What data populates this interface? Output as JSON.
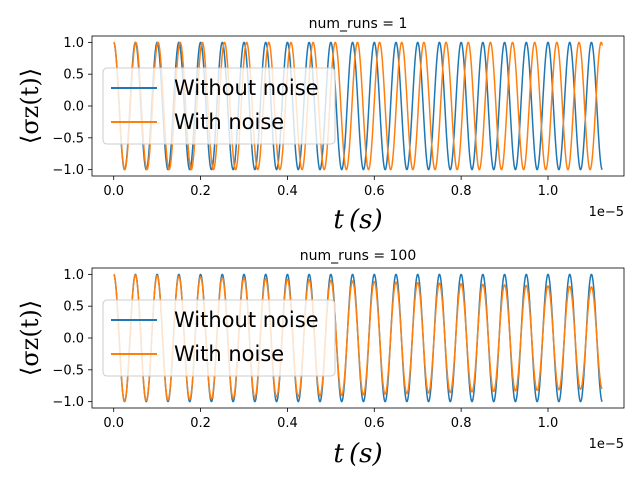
{
  "chart_data": [
    {
      "type": "line",
      "title": "num_runs = 1",
      "xlabel": "t (s)",
      "ylabel": "⟨σz(t)⟩",
      "x_offset_label": "1e−5",
      "xlim": [
        -0.05,
        1.175
      ],
      "ylim": [
        -1.1,
        1.1
      ],
      "xticks": [
        0.0,
        0.2,
        0.4,
        0.6,
        0.8,
        1.0
      ],
      "xtick_labels": [
        "0.0",
        "0.2",
        "0.4",
        "0.6",
        "0.8",
        "1.0"
      ],
      "yticks": [
        1.0,
        0.5,
        0.0,
        -0.5,
        -1.0
      ],
      "ytick_labels": [
        "1.0",
        "0.5",
        "0.0",
        "−0.5",
        "−1.0"
      ],
      "legend_position": "center-left",
      "x_range": [
        0.0,
        1.125
      ],
      "series": [
        {
          "name": "Without noise",
          "color": "#1f77b4",
          "frequency": 20.0,
          "damping": 0.0
        },
        {
          "name": "With noise",
          "color": "#ff7f0e",
          "frequency": 19.6,
          "damping": 0.0
        }
      ]
    },
    {
      "type": "line",
      "title": "num_runs = 100",
      "xlabel": "t (s)",
      "ylabel": "⟨σz(t)⟩",
      "x_offset_label": "1e−5",
      "xlim": [
        -0.05,
        1.175
      ],
      "ylim": [
        -1.1,
        1.1
      ],
      "xticks": [
        0.0,
        0.2,
        0.4,
        0.6,
        0.8,
        1.0
      ],
      "xtick_labels": [
        "0.0",
        "0.2",
        "0.4",
        "0.6",
        "0.8",
        "1.0"
      ],
      "yticks": [
        1.0,
        0.5,
        0.0,
        -0.5,
        -1.0
      ],
      "ytick_labels": [
        "1.0",
        "0.5",
        "0.0",
        "−0.5",
        "−1.0"
      ],
      "legend_position": "center-left",
      "x_range": [
        0.0,
        1.125
      ],
      "series": [
        {
          "name": "Without noise",
          "color": "#1f77b4",
          "frequency": 20.0,
          "damping": 0.0
        },
        {
          "name": "With noise",
          "color": "#ff7f0e",
          "frequency": 20.0,
          "damping": 0.2
        }
      ]
    }
  ]
}
